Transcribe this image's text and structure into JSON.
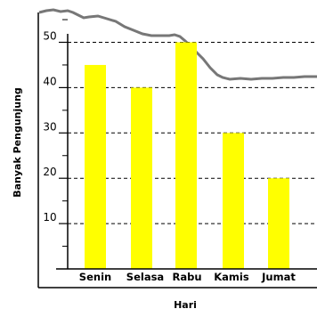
{
  "chart_data": {
    "type": "bar",
    "categories": [
      "Senin",
      "Selasa",
      "Rabu",
      "Kamis",
      "Jumat"
    ],
    "values": [
      45,
      40,
      50,
      30,
      20
    ],
    "xlabel": "Hari",
    "ylabel": "Banyak Pengunjung",
    "y_ticks": [
      "10",
      "20",
      "30",
      "40",
      "50"
    ],
    "ylim": [
      0,
      60
    ],
    "grid": "dashed horizontal lines at each labeled tick",
    "bar_color": "#ffff00",
    "style_note": "torn-paper edge along top and right"
  }
}
